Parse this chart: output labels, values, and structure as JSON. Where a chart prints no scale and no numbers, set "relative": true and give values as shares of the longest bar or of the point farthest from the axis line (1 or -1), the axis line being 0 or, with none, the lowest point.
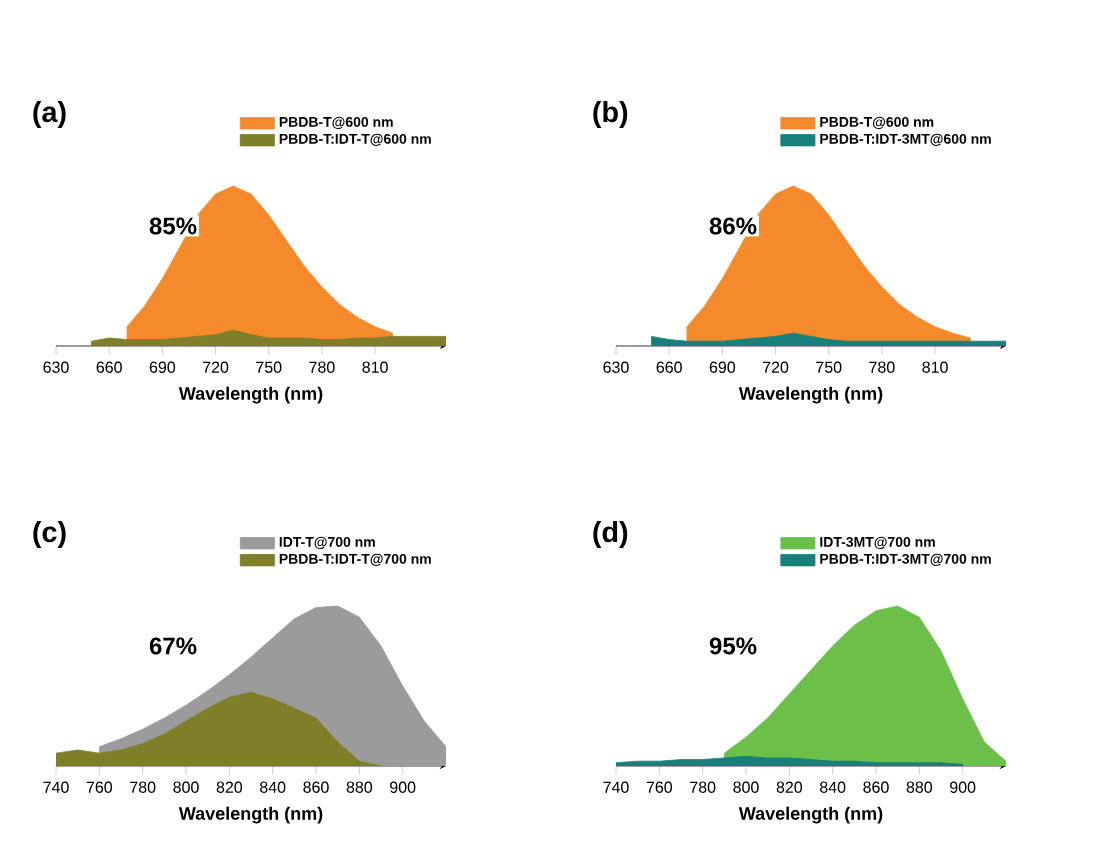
{
  "chart_data": [
    {
      "type": "area",
      "title": "(a)",
      "xlabel": "Wavelength (nm)",
      "relative": true,
      "xlim": [
        630,
        850
      ],
      "xticks": [
        630,
        660,
        690,
        720,
        750,
        780,
        810
      ],
      "legend": "top right",
      "annotations": [
        "85%"
      ],
      "series": [
        {
          "name": "PBDB-T@600 nm",
          "color": "#f58a2c",
          "x": [
            670,
            680,
            690,
            700,
            710,
            720,
            730,
            740,
            750,
            760,
            770,
            780,
            790,
            800,
            810,
            820
          ],
          "values": [
            0.12,
            0.25,
            0.42,
            0.62,
            0.82,
            0.95,
            1.0,
            0.95,
            0.82,
            0.66,
            0.5,
            0.37,
            0.26,
            0.18,
            0.12,
            0.08
          ]
        },
        {
          "name": "PBDB-T:IDT-T@600 nm",
          "color": "#7f7f2a",
          "x": [
            650,
            660,
            670,
            680,
            690,
            700,
            710,
            720,
            730,
            740,
            750,
            760,
            770,
            780,
            790,
            800,
            810,
            820,
            830,
            840,
            850
          ],
          "values": [
            0.03,
            0.05,
            0.04,
            0.04,
            0.04,
            0.05,
            0.06,
            0.07,
            0.1,
            0.07,
            0.05,
            0.05,
            0.05,
            0.04,
            0.04,
            0.05,
            0.05,
            0.06,
            0.06,
            0.06,
            0.06
          ]
        }
      ]
    },
    {
      "type": "area",
      "title": "(b)",
      "xlabel": "Wavelength (nm)",
      "relative": true,
      "xlim": [
        630,
        850
      ],
      "xticks": [
        630,
        660,
        690,
        720,
        750,
        780,
        810
      ],
      "legend": "top right",
      "annotations": [
        "86%"
      ],
      "series": [
        {
          "name": "PBDB-T@600 nm",
          "color": "#f58a2c",
          "x": [
            670,
            680,
            690,
            700,
            710,
            720,
            730,
            740,
            750,
            760,
            770,
            780,
            790,
            800,
            810,
            820,
            830
          ],
          "values": [
            0.12,
            0.25,
            0.42,
            0.62,
            0.82,
            0.95,
            1.0,
            0.95,
            0.82,
            0.66,
            0.5,
            0.37,
            0.26,
            0.18,
            0.12,
            0.08,
            0.05
          ]
        },
        {
          "name": "PBDB-T:IDT-3MT@600 nm",
          "color": "#17807a",
          "x": [
            650,
            660,
            670,
            680,
            690,
            700,
            710,
            720,
            730,
            740,
            750,
            760,
            770,
            780,
            790,
            800,
            810,
            820,
            830,
            840,
            850
          ],
          "values": [
            0.06,
            0.04,
            0.03,
            0.03,
            0.03,
            0.04,
            0.05,
            0.06,
            0.08,
            0.06,
            0.04,
            0.03,
            0.03,
            0.03,
            0.03,
            0.03,
            0.03,
            0.03,
            0.03,
            0.03,
            0.03
          ]
        }
      ]
    },
    {
      "type": "area",
      "title": "(c)",
      "xlabel": "Wavelength (nm)",
      "relative": true,
      "xlim": [
        740,
        920
      ],
      "xticks": [
        740,
        760,
        780,
        800,
        820,
        840,
        860,
        880,
        900
      ],
      "legend": "top right",
      "annotations": [
        "67%"
      ],
      "series": [
        {
          "name": "IDT-T@700 nm",
          "color": "#9b9b9b",
          "x": [
            760,
            770,
            780,
            790,
            800,
            810,
            820,
            830,
            840,
            850,
            860,
            870,
            880,
            890,
            900,
            910,
            920
          ],
          "values": [
            0.12,
            0.17,
            0.23,
            0.3,
            0.38,
            0.47,
            0.57,
            0.68,
            0.8,
            0.92,
            0.99,
            1.0,
            0.93,
            0.75,
            0.5,
            0.28,
            0.12
          ]
        },
        {
          "name": "PBDB-T:IDT-T@700 nm",
          "color": "#7f7f2a",
          "x": [
            740,
            750,
            760,
            770,
            780,
            790,
            800,
            810,
            820,
            830,
            840,
            850,
            860,
            870,
            880,
            890
          ],
          "values": [
            0.08,
            0.1,
            0.08,
            0.1,
            0.14,
            0.2,
            0.28,
            0.36,
            0.43,
            0.46,
            0.42,
            0.36,
            0.3,
            0.15,
            0.03,
            0.0
          ]
        }
      ]
    },
    {
      "type": "area",
      "title": "(d)",
      "xlabel": "Wavelength (nm)",
      "relative": true,
      "xlim": [
        740,
        920
      ],
      "xticks": [
        740,
        760,
        780,
        800,
        820,
        840,
        860,
        880,
        900
      ],
      "legend": "top right",
      "annotations": [
        "95%"
      ],
      "series": [
        {
          "name": "IDT-3MT@700 nm",
          "color": "#6cc04a",
          "x": [
            790,
            800,
            810,
            820,
            830,
            840,
            850,
            860,
            870,
            880,
            890,
            900,
            910,
            920
          ],
          "values": [
            0.08,
            0.18,
            0.3,
            0.45,
            0.6,
            0.75,
            0.88,
            0.97,
            1.0,
            0.93,
            0.72,
            0.42,
            0.15,
            0.03
          ]
        },
        {
          "name": "PBDB-T:IDT-3MT@700 nm",
          "color": "#17807a",
          "x": [
            740,
            750,
            760,
            770,
            780,
            790,
            800,
            810,
            820,
            830,
            840,
            850,
            860,
            870,
            880,
            890,
            900
          ],
          "values": [
            0.02,
            0.03,
            0.03,
            0.04,
            0.04,
            0.05,
            0.06,
            0.05,
            0.05,
            0.04,
            0.03,
            0.03,
            0.02,
            0.02,
            0.02,
            0.02,
            0.01
          ]
        }
      ]
    }
  ]
}
